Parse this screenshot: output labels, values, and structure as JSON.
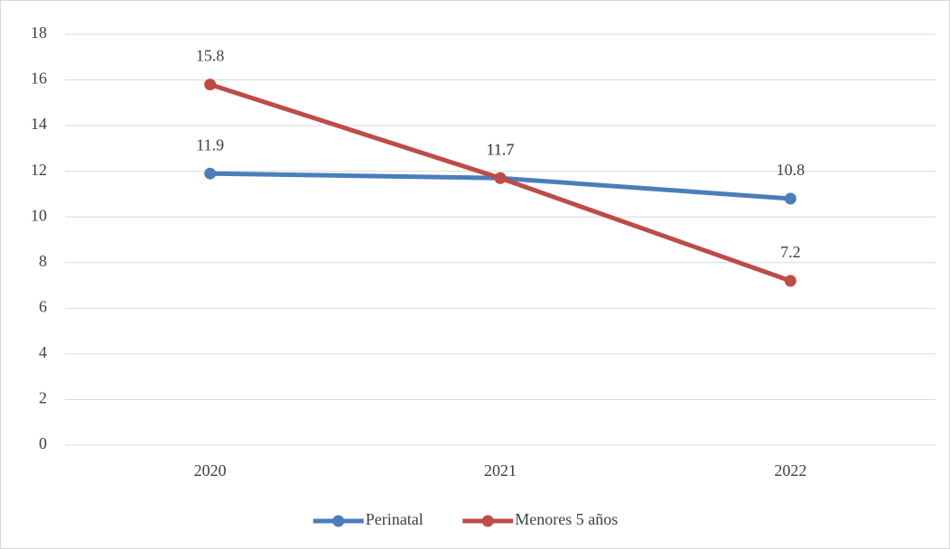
{
  "chart_data": {
    "type": "line",
    "categories": [
      "2020",
      "2021",
      "2022"
    ],
    "series": [
      {
        "name": "Perinatal",
        "color": "#4a7ebb",
        "values": [
          11.9,
          11.7,
          10.8
        ]
      },
      {
        "name": "Menores 5 años",
        "color": "#be4b48",
        "values": [
          15.8,
          11.7,
          7.2
        ]
      }
    ],
    "ylim": [
      0,
      18
    ],
    "yticks": [
      0,
      2,
      4,
      6,
      8,
      10,
      12,
      14,
      16,
      18
    ],
    "grid": true,
    "legend": "bottom",
    "data_labels": true
  }
}
